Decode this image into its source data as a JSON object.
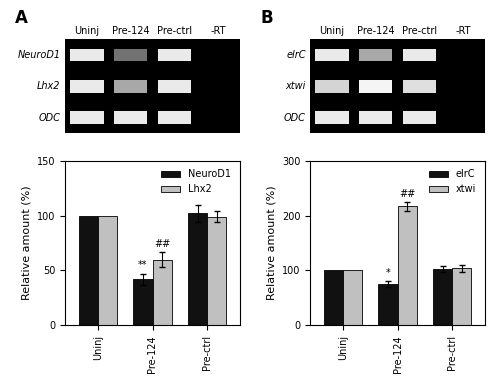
{
  "chart_data": [
    {
      "type": "bar",
      "title": "A",
      "gel": {
        "lanes": [
          "Uninj",
          "Pre-124",
          "Pre-ctrl",
          "-RT"
        ],
        "bands": [
          {
            "name": "NeuroD1",
            "intensities": [
              0.9,
              0.35,
              0.9,
              0
            ]
          },
          {
            "name": "Lhx2",
            "intensities": [
              0.9,
              0.6,
              0.9,
              0
            ]
          },
          {
            "name": "ODC",
            "intensities": [
              0.9,
              0.9,
              0.9,
              0
            ]
          }
        ]
      },
      "categories": [
        "Uninj",
        "Pre-124",
        "Pre-ctrl"
      ],
      "y_label": "Relative amount (%)",
      "series": [
        {
          "name": "NeuroD1",
          "color": "#111111",
          "values": [
            100,
            42,
            102
          ],
          "errors": [
            null,
            5,
            8
          ]
        },
        {
          "name": "Lhx2",
          "color": "#c0c0c0",
          "values": [
            100,
            60,
            99
          ],
          "errors": [
            null,
            7,
            5
          ]
        }
      ],
      "ylim": [
        0,
        150
      ],
      "yticks": [
        0,
        50,
        100,
        150
      ],
      "legend": "upper right",
      "annotations": [
        {
          "text": "**",
          "category": "Pre-124",
          "series": "NeuroD1"
        },
        {
          "text": "##",
          "category": "Pre-124",
          "series": "Lhx2"
        }
      ]
    },
    {
      "type": "bar",
      "title": "B",
      "gel": {
        "lanes": [
          "Uninj",
          "Pre-124",
          "Pre-ctrl",
          "-RT"
        ],
        "bands": [
          {
            "name": "elrC",
            "intensities": [
              0.9,
              0.6,
              0.9,
              0
            ]
          },
          {
            "name": "xtwi",
            "intensities": [
              0.8,
              0.95,
              0.85,
              0
            ]
          },
          {
            "name": "ODC",
            "intensities": [
              0.9,
              0.9,
              0.9,
              0
            ]
          }
        ]
      },
      "categories": [
        "Uninj",
        "Pre-124",
        "Pre-ctrl"
      ],
      "y_label": "Relative amount (%)",
      "series": [
        {
          "name": "elrC",
          "color": "#111111",
          "values": [
            100,
            75,
            103
          ],
          "errors": [
            null,
            6,
            6
          ]
        },
        {
          "name": "xtwi",
          "color": "#c0c0c0",
          "values": [
            100,
            217,
            104
          ],
          "errors": [
            null,
            8,
            6
          ]
        }
      ],
      "ylim": [
        0,
        300
      ],
      "yticks": [
        0,
        100,
        200,
        300
      ],
      "legend": "upper right",
      "annotations": [
        {
          "text": "*",
          "category": "Pre-124",
          "series": "elrC"
        },
        {
          "text": "##",
          "category": "Pre-124",
          "series": "xtwi"
        }
      ]
    }
  ]
}
